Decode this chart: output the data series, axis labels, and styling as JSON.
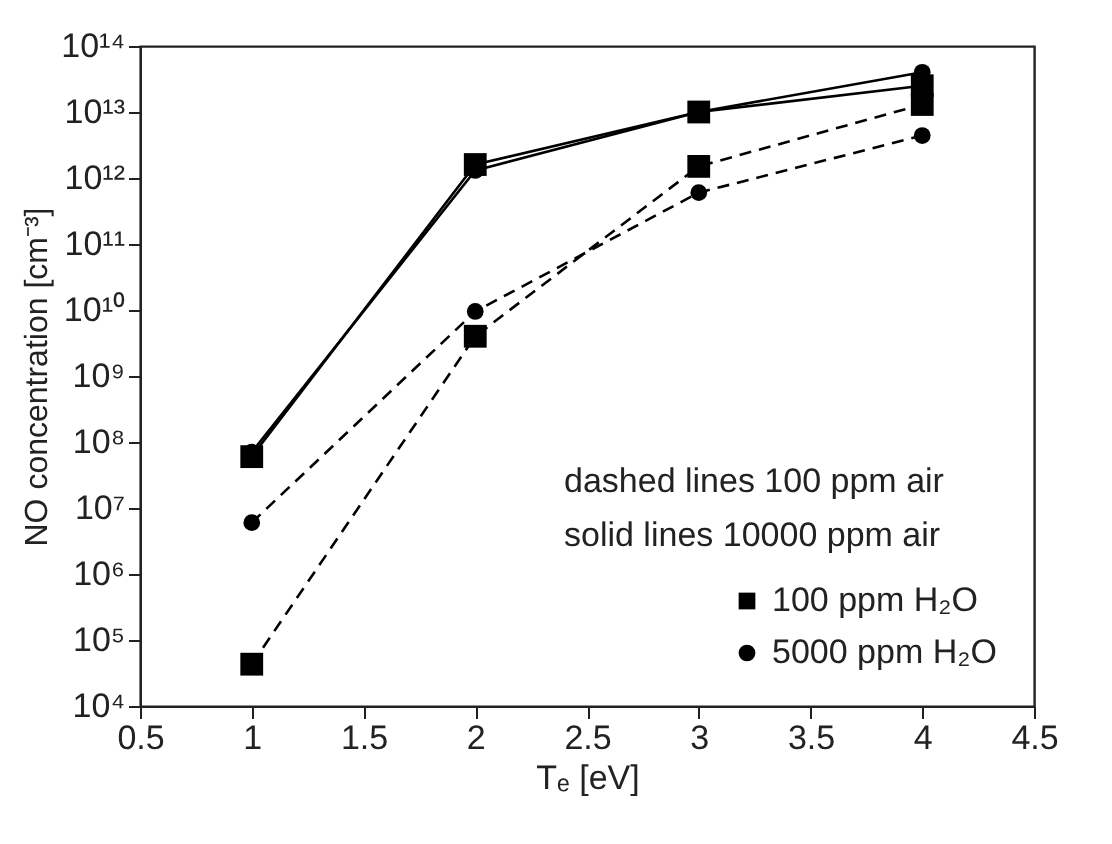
{
  "chart_data": {
    "type": "line",
    "xlabel": "Tₑ [eV]",
    "ylabel": "NO concentration [cm⁻³]",
    "x": [
      1.0,
      2.0,
      3.0,
      4.0
    ],
    "series": [
      {
        "name": "100 ppm H₂O",
        "color": "#000000",
        "marker": "square",
        "line_style": "dashed",
        "values": [
          43000.0,
          4000000000.0,
          1500000000000.0,
          13000000000000.0
        ]
      },
      {
        "name": "5000 ppm H₂O",
        "color": "#000000",
        "marker": "circle",
        "line_style": "dashed",
        "values": [
          6000000.0,
          9500000000.0,
          600000000000.0,
          4400000000000.0
        ]
      },
      {
        "color": "#000000",
        "marker": "square",
        "line_style": "solid",
        "values": [
          60000000.0,
          1600000000000.0,
          10000000000000.0,
          25000000000000.0
        ]
      },
      {
        "color": "#000000",
        "marker": "circle",
        "line_style": "solid",
        "values": [
          70000000.0,
          1300000000000.0,
          10000000000000.0,
          40000000000000.0
        ]
      }
    ],
    "annotations": [
      "dashed lines 100 ppm air",
      "solid lines 10000 ppm air"
    ],
    "log": "y",
    "grid": false,
    "legend": "bottom right",
    "xlim": [
      0.5,
      4.5
    ],
    "xticks": [
      0.5,
      1.0,
      1.5,
      2.0,
      2.5,
      3.0,
      3.5,
      4.0,
      4.5
    ],
    "ylim": [
      10000.0,
      100000000000000.0
    ],
    "yticks": [
      {
        "value": 10000.0,
        "label": "10⁴"
      },
      {
        "value": 100000.0,
        "label": "10⁵"
      },
      {
        "value": 1000000.0,
        "label": "10⁶"
      },
      {
        "value": 10000000.0,
        "label": "10⁷"
      },
      {
        "value": 100000000.0,
        "label": "10⁸"
      },
      {
        "value": 1000000000.0,
        "label": "10⁹"
      },
      {
        "value": 10000000000.0,
        "label": "10¹⁰"
      },
      {
        "value": 100000000000.0,
        "label": "10¹¹"
      },
      {
        "value": 1000000000000.0,
        "label": "10¹²"
      },
      {
        "value": 10000000000000.0,
        "label": "10¹³"
      },
      {
        "value": 100000000000000.0,
        "label": "10¹⁴"
      }
    ]
  }
}
